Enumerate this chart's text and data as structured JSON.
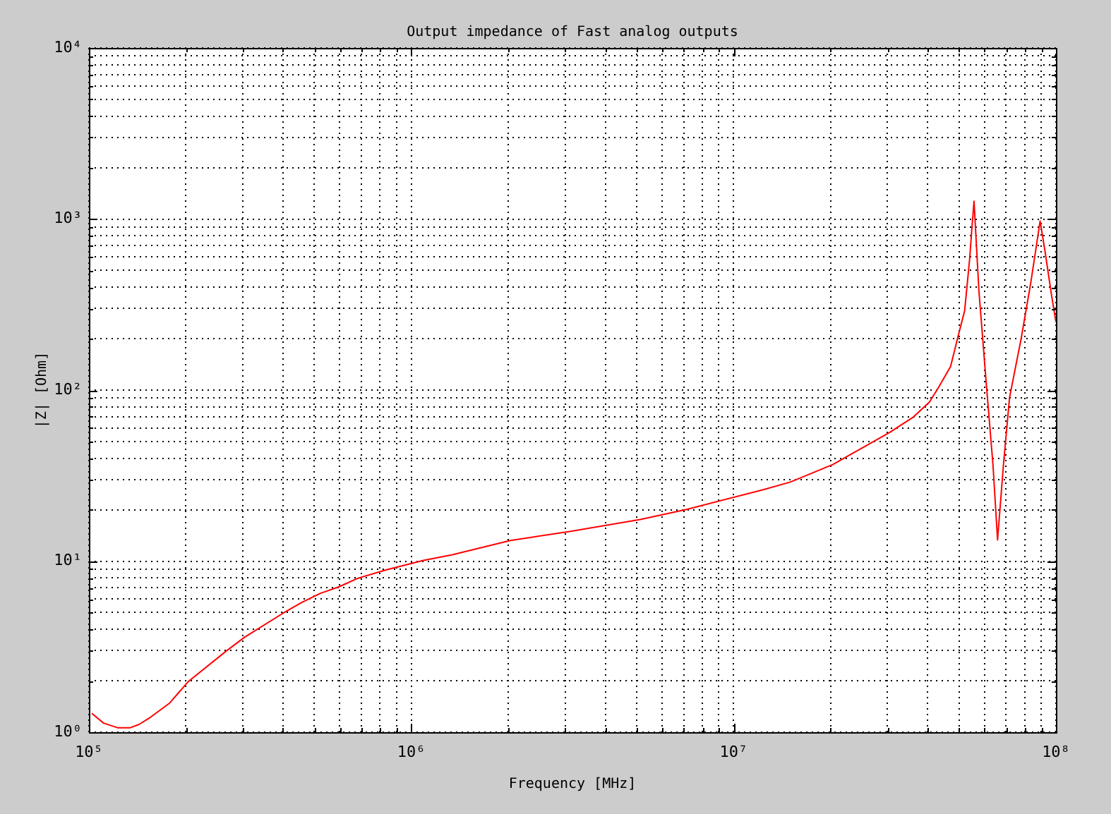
{
  "chart_data": {
    "type": "line",
    "title": "Output impedance of Fast analog outputs",
    "xlabel": "Frequency [MHz]",
    "ylabel": "|Z| [Ohm]",
    "x": [
      102000,
      111000,
      123000,
      134000,
      143000,
      155000,
      178000,
      203000,
      266000,
      304000,
      398000,
      455000,
      521000,
      596000,
      682000,
      834000,
      1090000,
      1340000,
      2030000,
      3100000,
      5130000,
      7180000,
      12300000,
      15000000,
      20300000,
      30400000,
      36100000,
      40500000,
      43000000,
      47100000,
      49500000,
      52100000,
      54000000,
      54800000,
      55700000,
      57700000,
      60700000,
      63800000,
      65900000,
      68700000,
      71800000,
      78000000,
      83600000,
      89300000,
      92300000,
      97000000,
      100000000
    ],
    "series": [
      {
        "color": "#ff0000",
        "values": [
          1.29,
          1.13,
          1.06,
          1.06,
          1.11,
          1.22,
          1.48,
          1.97,
          2.97,
          3.59,
          4.93,
          5.7,
          6.47,
          7.07,
          7.93,
          8.88,
          10.1,
          10.9,
          13.2,
          14.9,
          17.5,
          20.1,
          26.1,
          29.0,
          36.7,
          56.4,
          69.5,
          85.1,
          102,
          137,
          200,
          292,
          587,
          859,
          1270,
          377,
          113,
          36.2,
          13.3,
          36.2,
          90.6,
          200,
          427,
          973,
          665,
          354,
          250
        ]
      }
    ],
    "log": "xy",
    "xlim": [
      100000,
      100000000
    ],
    "ylim": [
      1,
      10000
    ],
    "xticks": [
      {
        "value": 100000,
        "label": "10⁵"
      },
      {
        "value": 200000,
        "label": null
      },
      {
        "value": 300000,
        "label": null
      },
      {
        "value": 400000,
        "label": null
      },
      {
        "value": 500000,
        "label": null
      },
      {
        "value": 600000,
        "label": null
      },
      {
        "value": 700000,
        "label": null
      },
      {
        "value": 800000,
        "label": null
      },
      {
        "value": 900000,
        "label": null
      },
      {
        "value": 1000000,
        "label": "10⁶"
      },
      {
        "value": 2000000,
        "label": null
      },
      {
        "value": 3000000,
        "label": null
      },
      {
        "value": 4000000,
        "label": null
      },
      {
        "value": 5000000,
        "label": null
      },
      {
        "value": 6000000,
        "label": null
      },
      {
        "value": 7000000,
        "label": null
      },
      {
        "value": 8000000,
        "label": null
      },
      {
        "value": 9000000,
        "label": null
      },
      {
        "value": 10000000,
        "label": "10⁷"
      },
      {
        "value": 20000000,
        "label": null
      },
      {
        "value": 30000000,
        "label": null
      },
      {
        "value": 40000000,
        "label": null
      },
      {
        "value": 50000000,
        "label": null
      },
      {
        "value": 60000000,
        "label": null
      },
      {
        "value": 70000000,
        "label": null
      },
      {
        "value": 80000000,
        "label": null
      },
      {
        "value": 90000000,
        "label": null
      },
      {
        "value": 100000000,
        "label": "10⁸"
      }
    ],
    "yticks": [
      {
        "value": 1,
        "label": "10⁰"
      },
      {
        "value": 2,
        "label": null
      },
      {
        "value": 3,
        "label": null
      },
      {
        "value": 4,
        "label": null
      },
      {
        "value": 5,
        "label": null
      },
      {
        "value": 6,
        "label": null
      },
      {
        "value": 7,
        "label": null
      },
      {
        "value": 8,
        "label": null
      },
      {
        "value": 9,
        "label": null
      },
      {
        "value": 10,
        "label": "10¹"
      },
      {
        "value": 20,
        "label": null
      },
      {
        "value": 30,
        "label": null
      },
      {
        "value": 40,
        "label": null
      },
      {
        "value": 50,
        "label": null
      },
      {
        "value": 60,
        "label": null
      },
      {
        "value": 70,
        "label": null
      },
      {
        "value": 80,
        "label": null
      },
      {
        "value": 90,
        "label": null
      },
      {
        "value": 100,
        "label": "10²"
      },
      {
        "value": 200,
        "label": null
      },
      {
        "value": 300,
        "label": null
      },
      {
        "value": 400,
        "label": null
      },
      {
        "value": 500,
        "label": null
      },
      {
        "value": 600,
        "label": null
      },
      {
        "value": 700,
        "label": null
      },
      {
        "value": 800,
        "label": null
      },
      {
        "value": 900,
        "label": null
      },
      {
        "value": 1000,
        "label": "10³"
      },
      {
        "value": 2000,
        "label": null
      },
      {
        "value": 3000,
        "label": null
      },
      {
        "value": 4000,
        "label": null
      },
      {
        "value": 5000,
        "label": null
      },
      {
        "value": 6000,
        "label": null
      },
      {
        "value": 7000,
        "label": null
      },
      {
        "value": 8000,
        "label": null
      },
      {
        "value": 9000,
        "label": null
      },
      {
        "value": 10000,
        "label": "10⁴"
      }
    ],
    "grid": true,
    "marker": "none"
  }
}
